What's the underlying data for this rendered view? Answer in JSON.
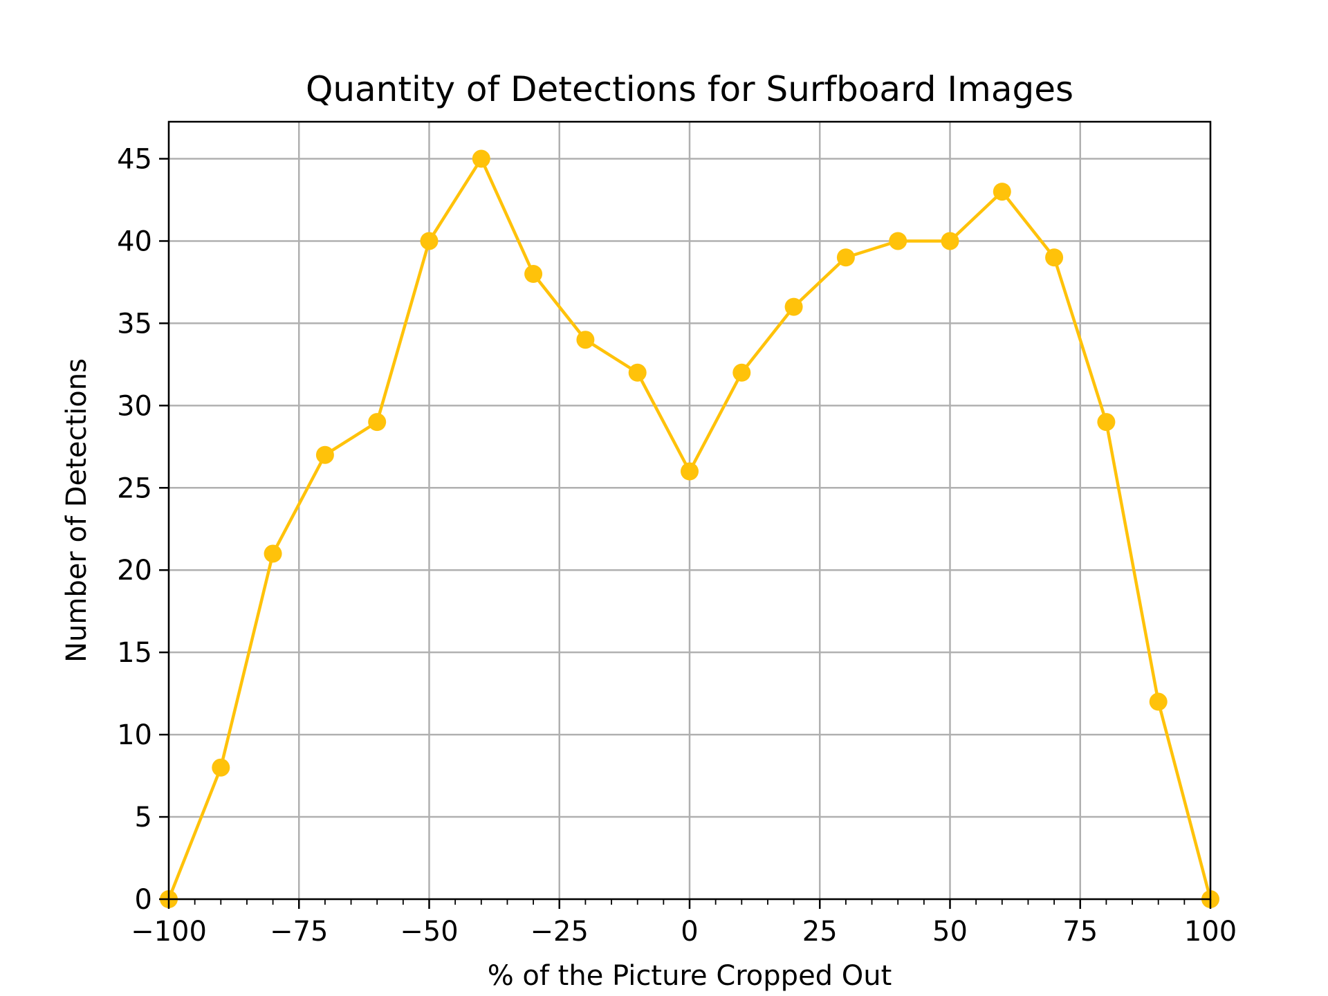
{
  "chart_data": {
    "type": "line",
    "title": "Quantity of Detections for Surfboard Images",
    "xlabel": "% of the Picture Cropped Out",
    "ylabel": "Number of Detections",
    "xlim": [
      -100,
      100
    ],
    "ylim": [
      0,
      47.25
    ],
    "grid": true,
    "x_ticks": [
      -100,
      -75,
      -50,
      -25,
      0,
      25,
      50,
      75,
      100
    ],
    "x_tick_labels": [
      "−100",
      "−75",
      "−50",
      "−25",
      "0",
      "25",
      "50",
      "75",
      "100"
    ],
    "x_minor_ticks": [
      -95,
      -90,
      -85,
      -80,
      -70,
      -65,
      -60,
      -55,
      -45,
      -40,
      -35,
      -30,
      -20,
      -15,
      -10,
      -5,
      5,
      10,
      15,
      20,
      30,
      35,
      40,
      45,
      55,
      60,
      65,
      70,
      80,
      85,
      90,
      95
    ],
    "y_ticks": [
      0,
      5,
      10,
      15,
      20,
      25,
      30,
      35,
      40,
      45
    ],
    "y_tick_labels": [
      "0",
      "5",
      "10",
      "15",
      "20",
      "25",
      "30",
      "35",
      "40",
      "45"
    ],
    "series": [
      {
        "color": "#ffc20a",
        "x": [
          -100,
          -90,
          -80,
          -70,
          -60,
          -50,
          -40,
          -30,
          -20,
          -10,
          0,
          10,
          20,
          30,
          40,
          50,
          60,
          70,
          80,
          90,
          100
        ],
        "values": [
          0,
          8,
          21,
          27,
          29,
          40,
          45,
          38,
          34,
          32,
          26,
          32,
          36,
          39,
          40,
          40,
          43,
          39,
          29,
          12,
          0
        ]
      }
    ]
  }
}
